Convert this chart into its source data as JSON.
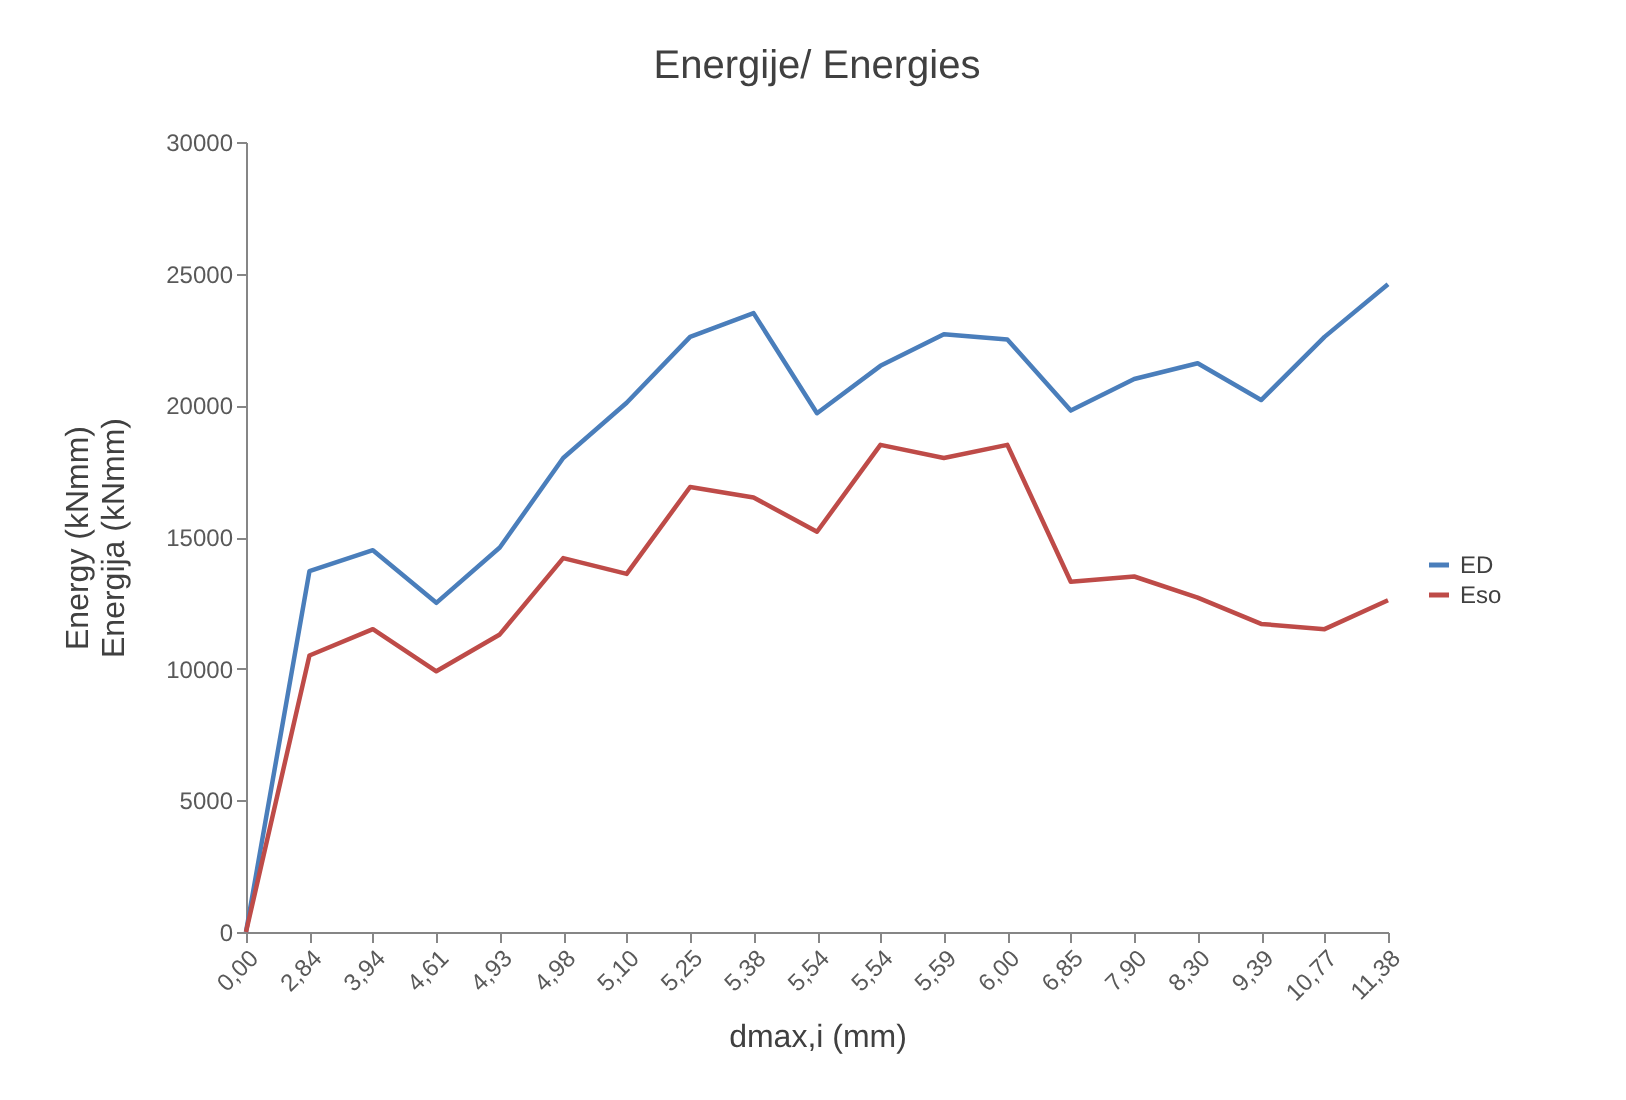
{
  "chart_data": {
    "type": "line",
    "title": "Energije/ Energies",
    "xlabel": "dmax,i  (mm)",
    "ylabel": "Energy (kNmm)\nEnergija (kNmm)",
    "categories": [
      "0,00",
      "2,84",
      "3,94",
      "4,61",
      "4,93",
      "4,98",
      "5,10",
      "5,25",
      "5,38",
      "5,54",
      "5,54",
      "5,59",
      "6,00",
      "6,85",
      "7,90",
      "8,30",
      "9,39",
      "10,77",
      "11,38"
    ],
    "series": [
      {
        "name": "ED",
        "color": "#4a7ebb",
        "values": [
          0,
          13700,
          14500,
          12500,
          14600,
          18000,
          20100,
          22600,
          23500,
          19700,
          21500,
          22700,
          22500,
          19800,
          21000,
          21600,
          20200,
          22600,
          24600
        ]
      },
      {
        "name": "Eso",
        "color": "#be4b48",
        "values": [
          0,
          10500,
          11500,
          9900,
          11300,
          14200,
          13600,
          16900,
          16500,
          15200,
          18500,
          18000,
          18500,
          13300,
          13500,
          12700,
          11700,
          11500,
          12600
        ]
      }
    ],
    "ylim": [
      0,
      30000
    ],
    "yticks": [
      0,
      5000,
      10000,
      15000,
      20000,
      25000,
      30000
    ],
    "grid": false,
    "legend": "right",
    "marker": "none",
    "line_style": "solid"
  }
}
